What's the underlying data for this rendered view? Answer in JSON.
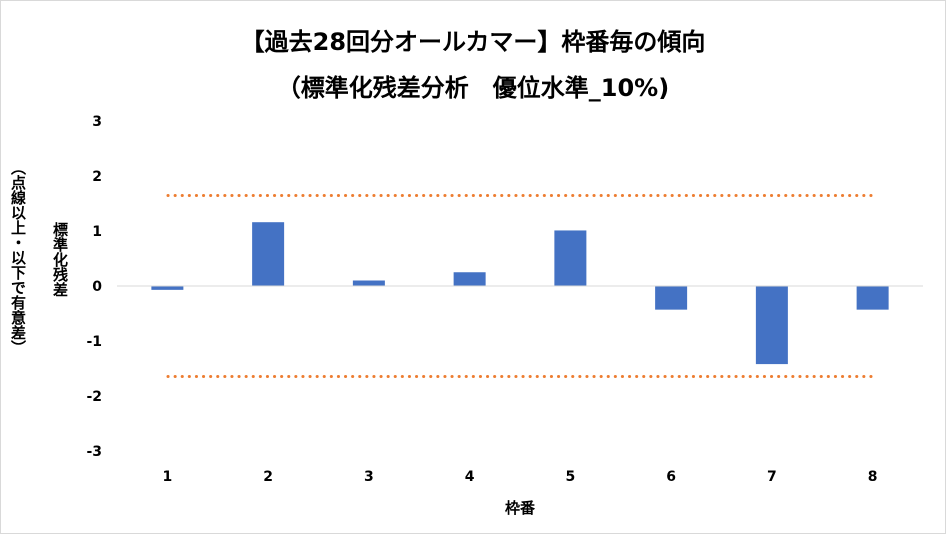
{
  "chart_data": {
    "type": "bar",
    "title": "【過去28回分オールカマー】枠番毎の傾向",
    "subtitle": "（標準化残差分析　優位水準_10%)",
    "xlabel": "枠番",
    "ylabel": "標準化残差",
    "ylabel_note": "（点線以上・以下で有意差）",
    "categories": [
      "1",
      "2",
      "3",
      "4",
      "5",
      "6",
      "7",
      "8"
    ],
    "values": [
      -0.07,
      1.16,
      0.1,
      0.25,
      1.01,
      -0.43,
      -1.42,
      -0.43
    ],
    "ylim": [
      -3,
      3
    ],
    "yticks": [
      "3",
      "2",
      "1",
      "0",
      "-1",
      "-2",
      "-3"
    ],
    "ytick_values": [
      3,
      2,
      1,
      0,
      -1,
      -2,
      -3
    ],
    "thresholds": [
      1.645,
      -1.645
    ],
    "bar_color": "#4472c4",
    "threshold_color": "#ed7d31",
    "grid": false
  }
}
